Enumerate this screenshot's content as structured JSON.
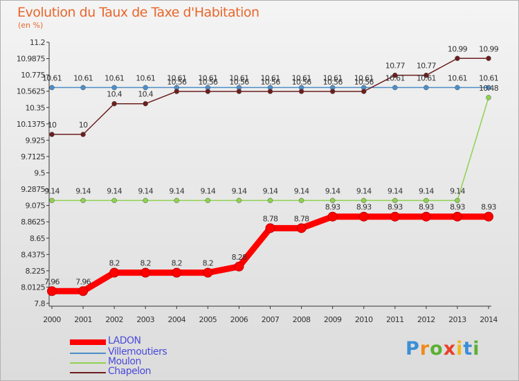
{
  "title": "Evolution du Taux de Taxe d'Habitation",
  "unit": "(en %)",
  "brand": {
    "letters": [
      "P",
      "r",
      "o",
      "x",
      "i",
      "t",
      "i"
    ],
    "colors": [
      "#3b8fd6",
      "#f08a1c",
      "#5bb032",
      "#e8402a",
      "#f0b81c",
      "#3b8fd6",
      "#5bb032"
    ]
  },
  "chart_data": {
    "type": "line",
    "title": "Evolution du Taux de Taxe d'Habitation",
    "ylabel": "(en %)",
    "xlabel": "",
    "x": [
      "2000",
      "2001",
      "2002",
      "2003",
      "2004",
      "2005",
      "2006",
      "2007",
      "2008",
      "2009",
      "2010",
      "2011",
      "2012",
      "2013",
      "2014"
    ],
    "ylim": [
      7.8,
      11.2
    ],
    "yticks": [
      "7.8",
      "8.0125",
      "8.225",
      "8.4375",
      "8.65",
      "8.8625",
      "9.075",
      "9.2875",
      "9.5",
      "9.7125",
      "9.925",
      "10.1375",
      "10.35",
      "10.5625",
      "10.775",
      "10.9875",
      "11.2"
    ],
    "grid": false,
    "legend_position": "bottom-left",
    "series": [
      {
        "name": "LADON",
        "color": "#ff0000",
        "values": [
          7.96,
          7.96,
          8.2,
          8.2,
          8.2,
          8.2,
          8.28,
          8.78,
          8.78,
          8.93,
          8.93,
          8.93,
          8.93,
          8.93,
          8.93
        ],
        "labels": [
          "7.96",
          "7.96",
          "8.2",
          "8.2",
          "8.2",
          "8.2",
          "8.28",
          "8.78",
          "8.78",
          "8.93",
          "8.93",
          "8.93",
          "8.93",
          "8.93",
          "8.93"
        ]
      },
      {
        "name": "Villemoutiers",
        "color": "#4d8ec8",
        "values": [
          10.61,
          10.61,
          10.61,
          10.61,
          10.61,
          10.61,
          10.61,
          10.61,
          10.61,
          10.61,
          10.61,
          10.61,
          10.61,
          10.61,
          10.61
        ],
        "labels": [
          "10.61",
          "10.61",
          "10.61",
          "10.61",
          "10.61",
          "10.61",
          "10.61",
          "10.61",
          "10.61",
          "10.61",
          "10.61",
          "10.61",
          "10.61",
          "10.61",
          "10.61"
        ]
      },
      {
        "name": "Moulon",
        "color": "#8ed150",
        "values": [
          9.14,
          9.14,
          9.14,
          9.14,
          9.14,
          9.14,
          9.14,
          9.14,
          9.14,
          9.14,
          9.14,
          9.14,
          9.14,
          9.14,
          10.48
        ],
        "labels": [
          "9.14",
          "9.14",
          "9.14",
          "9.14",
          "9.14",
          "9.14",
          "9.14",
          "9.14",
          "9.14",
          "9.14",
          "9.14",
          "9.14",
          "9.14",
          "9.14",
          "10.48"
        ]
      },
      {
        "name": "Chapelon",
        "color": "#6b1e1e",
        "values": [
          10.0,
          10.0,
          10.4,
          10.4,
          10.56,
          10.56,
          10.56,
          10.56,
          10.56,
          10.56,
          10.56,
          10.77,
          10.77,
          10.99,
          10.99
        ],
        "labels": [
          "10",
          "10",
          "10.4",
          "10.4",
          "10.56",
          "10.56",
          "10.56",
          "10.56",
          "10.56",
          "10.56",
          "10.56",
          "10.77",
          "10.77",
          "10.99",
          "10.99"
        ]
      }
    ]
  }
}
